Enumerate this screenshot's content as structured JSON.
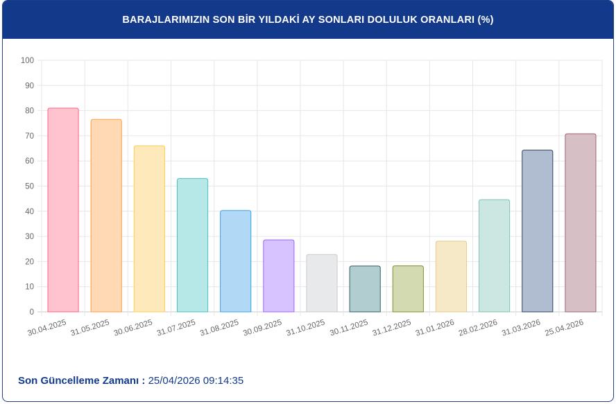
{
  "header": {
    "title": "BARAJLARIMIZIN SON BİR YILDAKİ AY SONLARI DOLULUK ORANLARI (%)"
  },
  "footer": {
    "label": "Son Güncelleme Zamanı :",
    "value": "25/04/2026 09:14:35"
  },
  "chart_data": {
    "type": "bar",
    "title": "BARAJLARIMIZIN SON BİR YILDAKİ AY SONLARI DOLULUK ORANLARI (%)",
    "xlabel": "",
    "ylabel": "",
    "ylim": [
      0,
      100
    ],
    "yticks": [
      0,
      10,
      20,
      30,
      40,
      50,
      60,
      70,
      80,
      90,
      100
    ],
    "grid": true,
    "categories": [
      "30.04.2025",
      "31.05.2025",
      "30.06.2025",
      "31.07.2025",
      "31.08.2025",
      "30.09.2025",
      "31.10.2025",
      "30.11.2025",
      "31.12.2025",
      "31.01.2026",
      "28.02.2026",
      "31.03.2026",
      "25.04.2026"
    ],
    "values": [
      81,
      76.5,
      66,
      53,
      40.3,
      28.6,
      22.8,
      18.2,
      18.3,
      28.1,
      44.6,
      64.3,
      70.8
    ],
    "fill_colors": [
      "#ffc3d0",
      "#fed9b4",
      "#fde9b9",
      "#b5e8e6",
      "#b1d9f6",
      "#d7c3ff",
      "#e8e9eb",
      "#b1cdcf",
      "#d3dab1",
      "#f5e9c8",
      "#cce7e1",
      "#b0bdd0",
      "#d6c0c5"
    ],
    "stroke_colors": [
      "#ff6384",
      "#ff9f40",
      "#ffcd56",
      "#4bc0c0",
      "#36a2eb",
      "#9966ff",
      "#c9cbcf",
      "#2f5f66",
      "#808d2c",
      "#e8c98a",
      "#7fc2ae",
      "#2a3f60",
      "#9c6470"
    ]
  }
}
